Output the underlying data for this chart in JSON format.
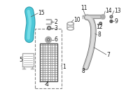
{
  "background_color": "#ffffff",
  "fig_width": 2.0,
  "fig_height": 1.47,
  "dpi": 100,
  "pipe_color": "#4dc8d8",
  "pipe_edge_color": "#2a9aaa",
  "pipe_highlight": "#8ee8f0",
  "part_color": "#aaaaaa",
  "line_color": "#555555",
  "label_fontsize": 5.5,
  "label_color": "#222222"
}
